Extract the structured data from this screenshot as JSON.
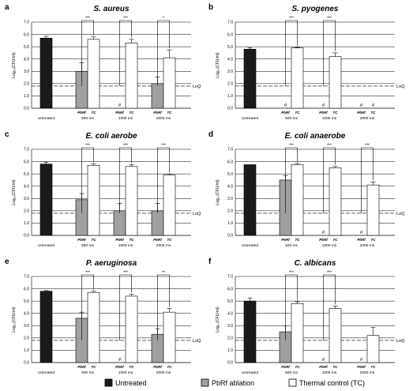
{
  "colors": {
    "untreated": "#1a1a1a",
    "pbrf": "#a0a0a0",
    "tc": "#ffffff",
    "grid": "#000000"
  },
  "chart_data": [
    {
      "type": "bar",
      "panel": "a",
      "title": "S. aureus",
      "ylabel": "Log₁₀(CFU/ml)",
      "ylim": [
        0,
        7.0
      ],
      "yticks": [
        "0.0",
        "1.0",
        "2.0",
        "3.0",
        "4.0",
        "5.0",
        "6.0",
        "7.0"
      ],
      "lod": {
        "value": 1.8,
        "label": "LoQ"
      },
      "categories": [
        "Untreated",
        "500 ms",
        "1000 ms",
        "2000 ms"
      ],
      "sublabels": [
        "PbRf",
        "TC"
      ],
      "bars": [
        {
          "cat": 0,
          "series": "untreated",
          "value": 5.7,
          "err": 0.15
        },
        {
          "cat": 1,
          "series": "pbrf",
          "value": 3.0,
          "err": 0.7
        },
        {
          "cat": 1,
          "series": "tc",
          "value": 5.6,
          "err": 0.2
        },
        {
          "cat": 2,
          "series": "pbrf",
          "value": null,
          "marker": "#"
        },
        {
          "cat": 2,
          "series": "tc",
          "value": 5.3,
          "err": 0.3
        },
        {
          "cat": 3,
          "series": "pbrf",
          "value": 2.0,
          "err": 0.55
        },
        {
          "cat": 3,
          "series": "tc",
          "value": 4.1,
          "err": 0.65
        }
      ],
      "significance": [
        "***",
        "***",
        "*"
      ]
    },
    {
      "type": "bar",
      "panel": "b",
      "title": "S. pyogenes",
      "ylabel": "Log₁₀(CFU/ml)",
      "ylim": [
        0,
        7.0
      ],
      "yticks": [
        "0.0",
        "1.0",
        "2.0",
        "3.0",
        "4.0",
        "5.0",
        "6.0",
        "7.0"
      ],
      "lod": {
        "value": 1.8,
        "label": "LoQ"
      },
      "categories": [
        "Untreated",
        "500 ms",
        "1000 ms",
        "2000 ms"
      ],
      "sublabels": [
        "PbRf",
        "TC"
      ],
      "bars": [
        {
          "cat": 0,
          "series": "untreated",
          "value": 4.8,
          "err": 0.12
        },
        {
          "cat": 1,
          "series": "pbrf",
          "value": null,
          "marker": "#"
        },
        {
          "cat": 1,
          "series": "tc",
          "value": 4.9,
          "err": 0.05
        },
        {
          "cat": 2,
          "series": "pbrf",
          "value": null,
          "marker": "#"
        },
        {
          "cat": 2,
          "series": "tc",
          "value": 4.2,
          "err": 0.3
        },
        {
          "cat": 3,
          "series": "pbrf",
          "value": null,
          "marker": "#"
        },
        {
          "cat": 3,
          "series": "tc",
          "value": null,
          "marker": "#"
        }
      ],
      "significance": [
        "***",
        "***",
        null
      ]
    },
    {
      "type": "bar",
      "panel": "c",
      "title": "E. coli aerobe",
      "ylabel": "Log₁₀(CFU/ml)",
      "ylim": [
        0,
        7.0
      ],
      "yticks": [
        "0.0",
        "1.0",
        "2.0",
        "3.0",
        "4.0",
        "5.0",
        "6.0",
        "7.0"
      ],
      "lod": {
        "value": 1.8,
        "label": "LoQ"
      },
      "categories": [
        "Untreated",
        "500 ms",
        "1000 ms",
        "2000 ms"
      ],
      "sublabels": [
        "PbRf",
        "TC"
      ],
      "bars": [
        {
          "cat": 0,
          "series": "untreated",
          "value": 5.8,
          "err": 0.15
        },
        {
          "cat": 1,
          "series": "pbrf",
          "value": 2.9,
          "err": 0.5
        },
        {
          "cat": 1,
          "series": "tc",
          "value": 5.7,
          "err": 0.1
        },
        {
          "cat": 2,
          "series": "pbrf",
          "value": 2.0,
          "err": 0.6
        },
        {
          "cat": 2,
          "series": "tc",
          "value": 5.6,
          "err": 0.15
        },
        {
          "cat": 3,
          "series": "pbrf",
          "value": 2.0,
          "err": 0.6
        },
        {
          "cat": 3,
          "series": "tc",
          "value": 4.9,
          "err": 0.1
        }
      ],
      "significance": [
        "***",
        "***",
        "***"
      ]
    },
    {
      "type": "bar",
      "panel": "d",
      "title": "E. coli anaerobe",
      "ylabel": "Log₁₀(CFU/ml)",
      "ylim": [
        0,
        7.0
      ],
      "yticks": [
        "0.0",
        "1.0",
        "2.0",
        "3.0",
        "4.0",
        "5.0",
        "6.0",
        "7.0"
      ],
      "lod": {
        "value": 1.8,
        "label": "LoQ"
      },
      "categories": [
        "Untreated",
        "500 ms",
        "1000 ms",
        "2000 ms"
      ],
      "sublabels": [
        "PbRf",
        "TC"
      ],
      "bars": [
        {
          "cat": 0,
          "series": "untreated",
          "value": 5.75,
          "err": 0.0
        },
        {
          "cat": 1,
          "series": "pbrf",
          "value": 4.5,
          "err": 0.35
        },
        {
          "cat": 1,
          "series": "tc",
          "value": 5.75,
          "err": 0.1
        },
        {
          "cat": 2,
          "series": "pbrf",
          "value": null,
          "marker": "#"
        },
        {
          "cat": 2,
          "series": "tc",
          "value": 5.5,
          "err": 0.1
        },
        {
          "cat": 3,
          "series": "pbrf",
          "value": null,
          "marker": "#"
        },
        {
          "cat": 3,
          "series": "tc",
          "value": 4.1,
          "err": 0.25
        }
      ],
      "significance": [
        "***",
        "***",
        "***"
      ]
    },
    {
      "type": "bar",
      "panel": "e",
      "title": "P. aeruginosa",
      "ylabel": "Log₁₀(CFU/ml)",
      "ylim": [
        0,
        7.0
      ],
      "yticks": [
        "0.0",
        "1.0",
        "2.0",
        "3.0",
        "4.0",
        "5.0",
        "6.0",
        "7.0"
      ],
      "lod": {
        "value": 1.8,
        "label": "LoQ"
      },
      "categories": [
        "Untreated",
        "500 ms",
        "1000 ms",
        "2000 ms"
      ],
      "sublabels": [
        "PbRf",
        "TC"
      ],
      "bars": [
        {
          "cat": 0,
          "series": "untreated",
          "value": 5.8,
          "err": 0.05
        },
        {
          "cat": 1,
          "series": "pbrf",
          "value": 3.6,
          "err": 0.5
        },
        {
          "cat": 1,
          "series": "tc",
          "value": 5.7,
          "err": 0.1
        },
        {
          "cat": 2,
          "series": "pbrf",
          "value": null,
          "marker": "#"
        },
        {
          "cat": 2,
          "series": "tc",
          "value": 5.4,
          "err": 0.15
        },
        {
          "cat": 3,
          "series": "pbrf",
          "value": 2.3,
          "err": 0.45
        },
        {
          "cat": 3,
          "series": "tc",
          "value": 4.1,
          "err": 0.3
        }
      ],
      "significance": [
        "***",
        "***",
        "**"
      ]
    },
    {
      "type": "bar",
      "panel": "f",
      "title": "C. albicans",
      "ylabel": "Log₁₀(CFU/ml)",
      "ylim": [
        0,
        7.0
      ],
      "yticks": [
        "0.0",
        "1.0",
        "2.0",
        "3.0",
        "4.0",
        "5.0",
        "6.0",
        "7.0"
      ],
      "lod": {
        "value": 1.8,
        "label": "LoQ"
      },
      "categories": [
        "Untreated",
        "500 ms",
        "1000 ms",
        "2000 ms"
      ],
      "sublabels": [
        "PbRf",
        "TC"
      ],
      "bars": [
        {
          "cat": 0,
          "series": "untreated",
          "value": 5.0,
          "err": 0.25
        },
        {
          "cat": 1,
          "series": "pbrf",
          "value": 2.5,
          "err": 0.5
        },
        {
          "cat": 1,
          "series": "tc",
          "value": 4.8,
          "err": 0.15
        },
        {
          "cat": 2,
          "series": "pbrf",
          "value": null,
          "marker": "#"
        },
        {
          "cat": 2,
          "series": "tc",
          "value": 4.4,
          "err": 0.2
        },
        {
          "cat": 3,
          "series": "pbrf",
          "value": null,
          "marker": "#"
        },
        {
          "cat": 3,
          "series": "tc",
          "value": 2.2,
          "err": 0.65
        }
      ],
      "significance": [
        "***",
        "***",
        null
      ]
    }
  ],
  "legend": [
    {
      "series": "untreated",
      "label": "Untreated"
    },
    {
      "series": "pbrf",
      "label": "PbRf ablation"
    },
    {
      "series": "tc",
      "label": "Thermal control (TC)"
    }
  ]
}
